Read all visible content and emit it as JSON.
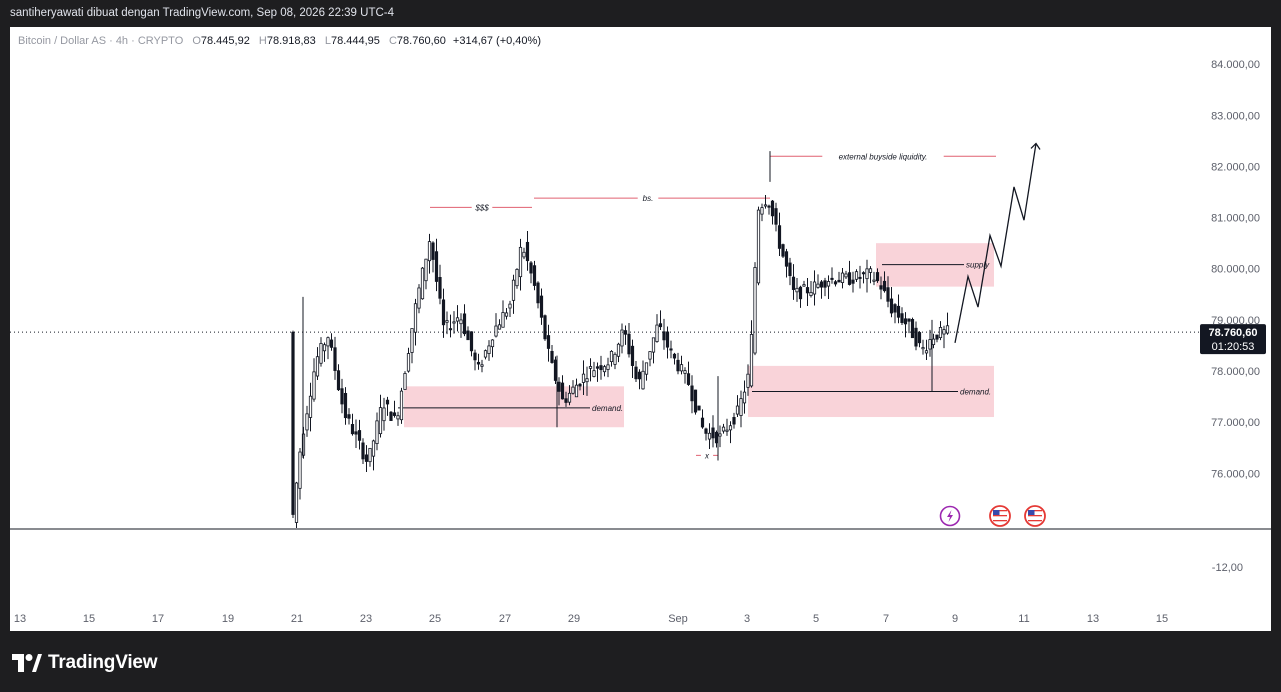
{
  "header": {
    "attribution": "santiheryawati dibuat dengan TradingView.com, Sep 08, 2026 22:39 UTC-4"
  },
  "legend": {
    "symbol": "Bitcoin / Dollar AS · 4h · CRYPTO",
    "o_label": "O",
    "o": "78.445,92",
    "h_label": "H",
    "h": "78.918,83",
    "l_label": "L",
    "l": "78.444,95",
    "c_label": "C",
    "c": "78.760,60",
    "change": "+314,67 (+0,40%)"
  },
  "price_tag": {
    "price": "78.760,60",
    "countdown": "01:20:53"
  },
  "footer": {
    "brand": "TradingView"
  },
  "colors": {
    "candle": "#131722",
    "annotation_line": "#e06070",
    "zone_fill": "#f9d3d9",
    "price_line": "#131722"
  },
  "icons": [
    "lightning-event-icon",
    "us-flag-event-icon",
    "us-flag-event-icon"
  ],
  "chart_data": {
    "type": "candlestick",
    "timeframe": "4h",
    "ylim": [
      75000,
      84600
    ],
    "y_ticks": [
      "84.000,00",
      "83.000,00",
      "82.000,00",
      "81.000,00",
      "80.000,00",
      "79.000,00",
      "78.000,00",
      "77.000,00",
      "76.000,00"
    ],
    "y_tick_values": [
      84000,
      83000,
      82000,
      81000,
      80000,
      79000,
      78000,
      77000,
      76000
    ],
    "lower_pane_tick": "-12,00",
    "x_ticks": [
      "13",
      "15",
      "17",
      "19",
      "21",
      "23",
      "25",
      "27",
      "29",
      "Sep",
      "3",
      "5",
      "7",
      "9",
      "11",
      "13",
      "15"
    ],
    "annotations": [
      {
        "kind": "line",
        "label": "$$$",
        "price": 81200
      },
      {
        "kind": "line",
        "label": "bs.",
        "price": 81380
      },
      {
        "kind": "line",
        "label": "external buyside liquidity.",
        "price": 82200
      },
      {
        "kind": "line",
        "label": "x",
        "price": 76350
      },
      {
        "kind": "zone",
        "label": "demand.",
        "low": 76900,
        "high": 77700,
        "line": 77280
      },
      {
        "kind": "zone",
        "label": "demand.",
        "low": 77100,
        "high": 78100,
        "line": 77600
      },
      {
        "kind": "zone",
        "label": "supply",
        "low": 79650,
        "high": 80500,
        "line": 80080
      }
    ],
    "projection": [
      [
        78550,
        78580
      ],
      [
        79850,
        79250
      ],
      [
        80650,
        80050
      ],
      [
        81600,
        80950
      ],
      [
        82450,
        82450
      ]
    ],
    "last_price": 78760.6
  }
}
